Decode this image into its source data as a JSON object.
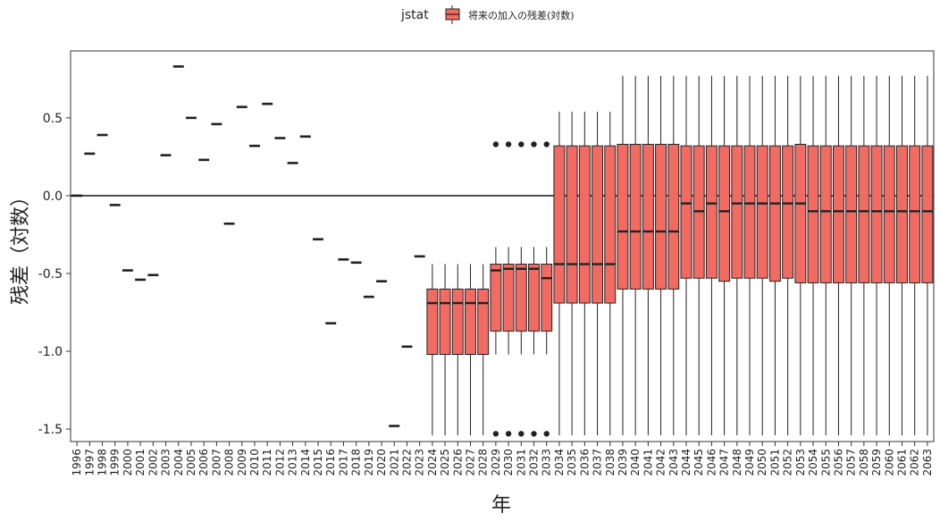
{
  "chart_data": {
    "type": "box",
    "title": "",
    "xlabel": "年",
    "ylabel": "残差（対数）",
    "legend": {
      "title": "jstat",
      "entries": [
        "将来の加入の残差(対数)"
      ],
      "position": "top"
    },
    "colors": {
      "fill": "#f16b62",
      "stroke": "#222222",
      "zero_line": "#000000",
      "frame": "#333333"
    },
    "grid": false,
    "reference_line": 0,
    "ylim": [
      -1.58,
      0.93
    ],
    "yticks": [
      0.5,
      0.0,
      -0.5,
      -1.0,
      -1.5
    ],
    "ytick_labels": [
      "0.5",
      "0.0",
      "-0.5",
      "-1.0",
      "-1.5"
    ],
    "categories": [
      "1996",
      "1997",
      "1998",
      "1999",
      "2000",
      "2001",
      "2002",
      "2003",
      "2004",
      "2005",
      "2006",
      "2007",
      "2008",
      "2009",
      "2010",
      "2011",
      "2012",
      "2013",
      "2014",
      "2015",
      "2016",
      "2017",
      "2018",
      "2019",
      "2020",
      "2021",
      "2022",
      "2023",
      "2024",
      "2025",
      "2026",
      "2027",
      "2028",
      "2029",
      "2030",
      "2031",
      "2032",
      "2033",
      "2034",
      "2035",
      "2036",
      "2037",
      "2038",
      "2039",
      "2040",
      "2041",
      "2042",
      "2043",
      "2044",
      "2045",
      "2046",
      "2047",
      "2048",
      "2049",
      "2050",
      "2051",
      "2052",
      "2053",
      "2054",
      "2055",
      "2056",
      "2057",
      "2058",
      "2059",
      "2060",
      "2061",
      "2062",
      "2063"
    ],
    "point_values": [
      0.0,
      0.27,
      0.39,
      -0.06,
      -0.48,
      -0.54,
      -0.51,
      0.26,
      0.83,
      0.5,
      0.23,
      0.46,
      -0.18,
      0.57,
      0.32,
      0.59,
      0.37,
      0.21,
      0.38,
      -0.28,
      -0.82,
      -0.41,
      -0.43,
      -0.65,
      -0.55,
      -1.48,
      -0.97,
      -0.39
    ],
    "boxes": [
      {
        "min": -1.54,
        "q1": -1.02,
        "median": -0.69,
        "q3": -0.6,
        "max": -0.44
      },
      {
        "min": -1.54,
        "q1": -1.02,
        "median": -0.69,
        "q3": -0.6,
        "max": -0.44
      },
      {
        "min": -1.54,
        "q1": -1.02,
        "median": -0.69,
        "q3": -0.6,
        "max": -0.44
      },
      {
        "min": -1.54,
        "q1": -1.02,
        "median": -0.69,
        "q3": -0.6,
        "max": -0.44
      },
      {
        "min": -1.54,
        "q1": -1.02,
        "median": -0.69,
        "q3": -0.6,
        "max": -0.44
      },
      {
        "min": -1.02,
        "q1": -0.87,
        "median": -0.48,
        "q3": -0.44,
        "max": -0.33,
        "outliers": [
          0.33,
          -1.53
        ]
      },
      {
        "min": -1.02,
        "q1": -0.87,
        "median": -0.47,
        "q3": -0.44,
        "max": -0.33,
        "outliers": [
          0.33,
          -1.53
        ]
      },
      {
        "min": -1.02,
        "q1": -0.87,
        "median": -0.47,
        "q3": -0.44,
        "max": -0.33,
        "outliers": [
          0.33,
          -1.53
        ]
      },
      {
        "min": -1.02,
        "q1": -0.87,
        "median": -0.47,
        "q3": -0.44,
        "max": -0.33,
        "outliers": [
          0.33,
          -1.53
        ]
      },
      {
        "min": -1.02,
        "q1": -0.87,
        "median": -0.53,
        "q3": -0.44,
        "max": -0.33,
        "outliers": [
          0.33,
          -1.53
        ]
      },
      {
        "min": -1.54,
        "q1": -0.69,
        "median": -0.44,
        "q3": 0.32,
        "max": 0.54
      },
      {
        "min": -1.54,
        "q1": -0.69,
        "median": -0.44,
        "q3": 0.32,
        "max": 0.54
      },
      {
        "min": -1.54,
        "q1": -0.69,
        "median": -0.44,
        "q3": 0.32,
        "max": 0.54
      },
      {
        "min": -1.54,
        "q1": -0.69,
        "median": -0.44,
        "q3": 0.32,
        "max": 0.54
      },
      {
        "min": -1.54,
        "q1": -0.69,
        "median": -0.44,
        "q3": 0.32,
        "max": 0.54
      },
      {
        "min": -1.54,
        "q1": -0.6,
        "median": -0.23,
        "q3": 0.33,
        "max": 0.77
      },
      {
        "min": -1.54,
        "q1": -0.6,
        "median": -0.23,
        "q3": 0.33,
        "max": 0.77
      },
      {
        "min": -1.54,
        "q1": -0.6,
        "median": -0.23,
        "q3": 0.33,
        "max": 0.77
      },
      {
        "min": -1.54,
        "q1": -0.6,
        "median": -0.23,
        "q3": 0.33,
        "max": 0.77
      },
      {
        "min": -1.54,
        "q1": -0.6,
        "median": -0.23,
        "q3": 0.33,
        "max": 0.77
      },
      {
        "min": -1.54,
        "q1": -0.53,
        "median": -0.05,
        "q3": 0.32,
        "max": 0.77
      },
      {
        "min": -1.54,
        "q1": -0.53,
        "median": -0.1,
        "q3": 0.32,
        "max": 0.77
      },
      {
        "min": -1.54,
        "q1": -0.53,
        "median": -0.05,
        "q3": 0.32,
        "max": 0.77
      },
      {
        "min": -1.54,
        "q1": -0.55,
        "median": -0.1,
        "q3": 0.32,
        "max": 0.77
      },
      {
        "min": -1.54,
        "q1": -0.53,
        "median": -0.05,
        "q3": 0.32,
        "max": 0.77
      },
      {
        "min": -1.54,
        "q1": -0.53,
        "median": -0.05,
        "q3": 0.32,
        "max": 0.77
      },
      {
        "min": -1.54,
        "q1": -0.53,
        "median": -0.05,
        "q3": 0.32,
        "max": 0.77
      },
      {
        "min": -1.54,
        "q1": -0.55,
        "median": -0.05,
        "q3": 0.32,
        "max": 0.77
      },
      {
        "min": -1.54,
        "q1": -0.53,
        "median": -0.05,
        "q3": 0.32,
        "max": 0.77
      },
      {
        "min": -1.54,
        "q1": -0.56,
        "median": -0.05,
        "q3": 0.33,
        "max": 0.77
      },
      {
        "min": -1.54,
        "q1": -0.56,
        "median": -0.1,
        "q3": 0.32,
        "max": 0.77
      },
      {
        "min": -1.54,
        "q1": -0.56,
        "median": -0.1,
        "q3": 0.32,
        "max": 0.77
      },
      {
        "min": -1.54,
        "q1": -0.56,
        "median": -0.1,
        "q3": 0.32,
        "max": 0.77
      },
      {
        "min": -1.54,
        "q1": -0.56,
        "median": -0.1,
        "q3": 0.32,
        "max": 0.77
      },
      {
        "min": -1.54,
        "q1": -0.56,
        "median": -0.1,
        "q3": 0.32,
        "max": 0.77
      },
      {
        "min": -1.54,
        "q1": -0.56,
        "median": -0.1,
        "q3": 0.32,
        "max": 0.77
      },
      {
        "min": -1.54,
        "q1": -0.56,
        "median": -0.1,
        "q3": 0.32,
        "max": 0.77
      },
      {
        "min": -1.54,
        "q1": -0.56,
        "median": -0.1,
        "q3": 0.32,
        "max": 0.77
      },
      {
        "min": -1.54,
        "q1": -0.56,
        "median": -0.1,
        "q3": 0.32,
        "max": 0.77
      },
      {
        "min": -1.54,
        "q1": -0.56,
        "median": -0.1,
        "q3": 0.32,
        "max": 0.77
      }
    ]
  }
}
